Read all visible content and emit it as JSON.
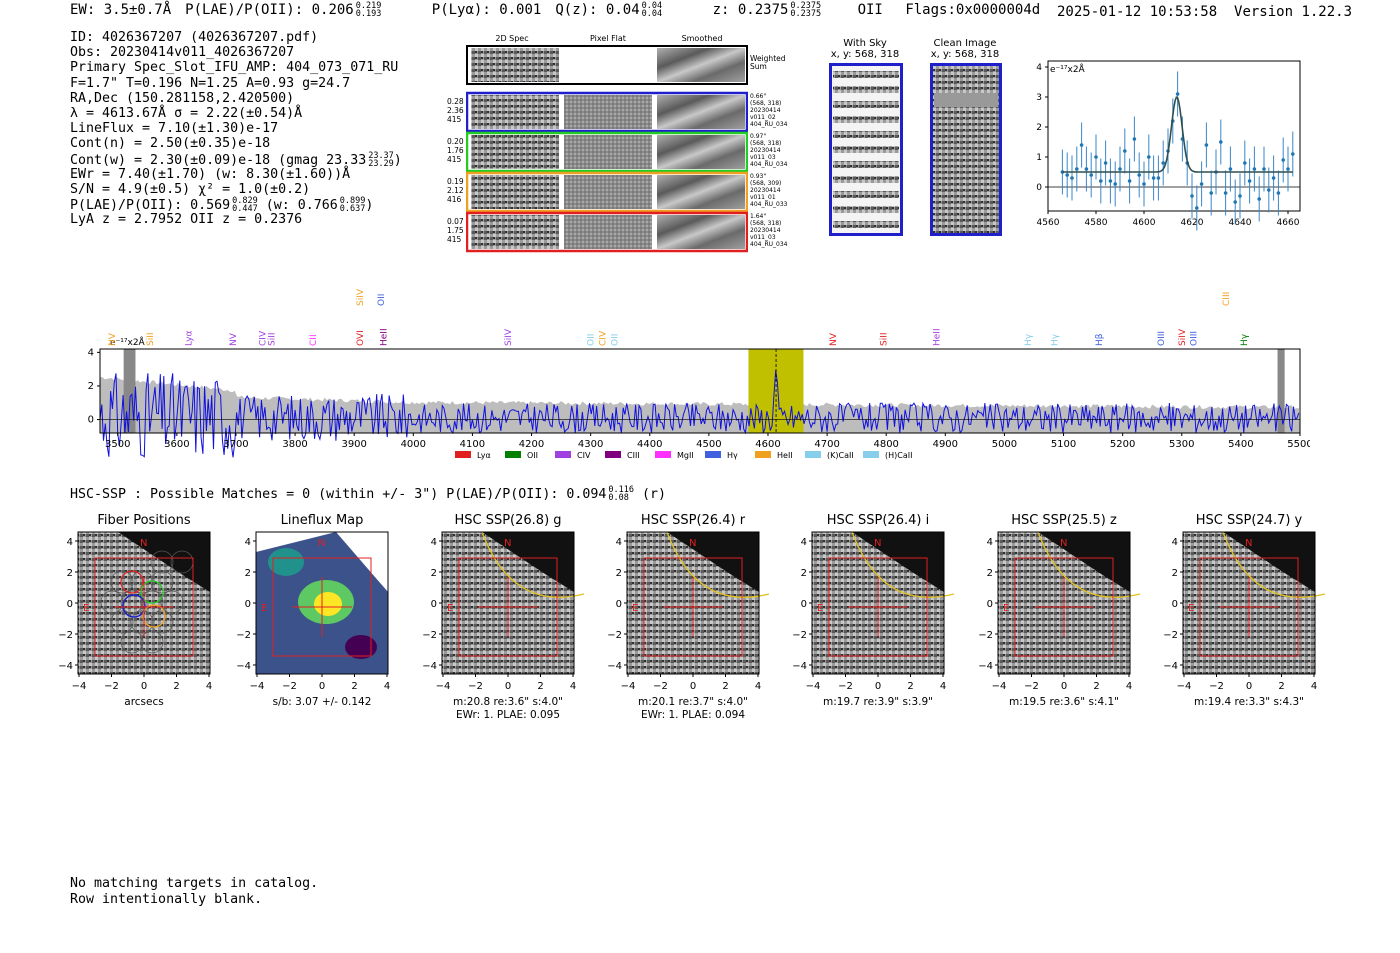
{
  "header": {
    "ew": "EW: 3.5±0.7Å",
    "plae_label": "P(LAE)/P(OII): 0.206",
    "plae_hi": "0.219",
    "plae_lo": "0.193",
    "plya": "P(Lyα): 0.001",
    "qz_label": "Q(z): 0.04",
    "qz_hi": "0.04",
    "qz_lo": "0.04",
    "z_label": "z: 0.2375",
    "z_hi": "0.2375",
    "z_lo": "0.2375",
    "z_line": "OII",
    "flags": "Flags:0x0000004d",
    "datetime": "2025-01-12 10:53:58",
    "version": "Version 1.22.3"
  },
  "info": {
    "id": "ID: 4026367207 (4026367207.pdf)",
    "obs": "Obs: 20230414v011_4026367207",
    "primary": "Primary Spec_Slot_IFU_AMP: 404_073_071_RU",
    "params": "F=1.7\"  T=0.196  N=1.25  A=0.93  g=24.7",
    "radec": "RA,Dec (150.281158,2.420500)",
    "lambda_sigma": "λ = 4613.67Å  σ = 2.22(±0.54)Å",
    "lineflux": "LineFlux = 7.10(±1.30)e-17",
    "contn": "Cont(n) = 2.50(±0.35)e-18",
    "contw": "Cont(w) = 2.30(±0.09)e-18 (gmag 23.33",
    "contw_hi": "23.37",
    "contw_lo": "23.29",
    "contw_end": ")",
    "ewr": "EWr = 7.40(±1.70) (w: 8.30(±1.60))Å",
    "sn": "S/N = 4.9(±0.5)  χ² = 1.0(±0.2)",
    "plae": "P(LAE)/P(OII): 0.569",
    "plae_hi": "0.829",
    "plae_lo": "0.447",
    "plae_w": "(w: 0.766",
    "plae_w_hi": "0.899",
    "plae_w_lo": "0.637",
    "plae_w_end": ")",
    "lya_z": "LyA z = 2.7952  OII z = 0.2376"
  },
  "cutouts": {
    "col_labels": [
      "2D Spec",
      "Pixel Flat",
      "Smoothed"
    ],
    "weighted_sum": "Weighted Sum",
    "rows": [
      {
        "left": [
          "0.28",
          "2.36",
          "415"
        ],
        "right": [
          "0.66\"",
          "(568, 318)",
          "20230414",
          "v011_02",
          "404_RU_034"
        ],
        "color": "#1f1fcc"
      },
      {
        "left": [
          "0.20",
          "1.76",
          "415"
        ],
        "right": [
          "0.97\"",
          "(568, 318)",
          "20230414",
          "v011_03",
          "404_RU_034"
        ],
        "color": "#22cc22"
      },
      {
        "left": [
          "0.19",
          "2.12",
          "416"
        ],
        "right": [
          "0.93\"",
          "(568, 309)",
          "20230414",
          "v011_01",
          "404_RU_033"
        ],
        "color": "#f0a020"
      },
      {
        "left": [
          "0.07",
          "1.75",
          "415"
        ],
        "right": [
          "1.64\"",
          "(568, 318)",
          "20230414",
          "v011_03",
          "404_RU_034"
        ],
        "color": "#e02020"
      }
    ]
  },
  "sky_panels": [
    {
      "title": "With Sky",
      "subtitle": "x, y: 568, 318"
    },
    {
      "title": "Clean Image",
      "subtitle": "x, y: 568, 318"
    }
  ],
  "zoom_spec": {
    "unit_label": "e⁻¹⁷x2Å",
    "yticks": [
      "0",
      "1",
      "2",
      "3",
      "4"
    ],
    "xticks": [
      "4560",
      "4580",
      "4600",
      "4620",
      "4640",
      "4660"
    ]
  },
  "full_spec": {
    "unit_label": "e⁻¹⁷x2Å",
    "yticks": [
      "0",
      "2",
      "4"
    ],
    "xticks": [
      "3500",
      "3600",
      "3700",
      "3800",
      "3900",
      "4000",
      "4100",
      "4200",
      "4300",
      "4400",
      "4500",
      "4600",
      "4700",
      "4800",
      "4900",
      "5000",
      "5100",
      "5200",
      "5300",
      "5400",
      "5500"
    ],
    "line_marks": [
      {
        "label": "NV",
        "wave": 3490,
        "color": "#f0a020",
        "row": 0
      },
      {
        "label": "SiII",
        "wave": 3555,
        "color": "#f0a020",
        "row": 0
      },
      {
        "label": "Lyα",
        "wave": 3620,
        "color": "#a040e0",
        "row": 0
      },
      {
        "label": "NV",
        "wave": 3695,
        "color": "#a040e0",
        "row": 0
      },
      {
        "label": "CIV",
        "wave": 3745,
        "color": "#a040e0",
        "row": 0
      },
      {
        "label": "SiII",
        "wave": 3760,
        "color": "#a040e0",
        "row": 0
      },
      {
        "label": "CII",
        "wave": 3830,
        "color": "#ff30ff",
        "row": 0
      },
      {
        "label": "SiIV",
        "wave": 3910,
        "color": "#f0a020",
        "row": 1
      },
      {
        "label": "OVI",
        "wave": 3910,
        "color": "#e02020",
        "row": 0
      },
      {
        "label": "OII",
        "wave": 3945,
        "color": "#4060e0",
        "row": 1
      },
      {
        "label": "HeII",
        "wave": 3950,
        "color": "#800080",
        "row": 0
      },
      {
        "label": "SiIV",
        "wave": 4160,
        "color": "#a040e0",
        "row": 0
      },
      {
        "label": "OII",
        "wave": 4300,
        "color": "#87ceeb",
        "row": 0
      },
      {
        "label": "CIV",
        "wave": 4320,
        "color": "#f0a020",
        "row": 0
      },
      {
        "label": "OII",
        "wave": 4340,
        "color": "#87ceeb",
        "row": 0
      },
      {
        "label": "NV",
        "wave": 4710,
        "color": "#e02020",
        "row": 0
      },
      {
        "label": "SiII",
        "wave": 4795,
        "color": "#e02020",
        "row": 0
      },
      {
        "label": "HeII",
        "wave": 4885,
        "color": "#a040e0",
        "row": 0
      },
      {
        "label": "Hγ",
        "wave": 5040,
        "color": "#87ceeb",
        "row": 0
      },
      {
        "label": "Hγ",
        "wave": 5085,
        "color": "#87ceeb",
        "row": 0
      },
      {
        "label": "Hβ",
        "wave": 5160,
        "color": "#4060e0",
        "row": 0
      },
      {
        "label": "OIII",
        "wave": 5265,
        "color": "#4060e0",
        "row": 0
      },
      {
        "label": "SiIV",
        "wave": 5300,
        "color": "#e02020",
        "row": 0
      },
      {
        "label": "OIII",
        "wave": 5320,
        "color": "#4060e0",
        "row": 0
      },
      {
        "label": "CIII",
        "wave": 5375,
        "color": "#f0a020",
        "row": 1
      },
      {
        "label": "Hγ",
        "wave": 5405,
        "color": "#008000",
        "row": 0
      }
    ],
    "legend": [
      {
        "label": "Lyα",
        "color": "#e02020"
      },
      {
        "label": "OII",
        "color": "#008000"
      },
      {
        "label": "CIV",
        "color": "#a040e0"
      },
      {
        "label": "CIII",
        "color": "#800080"
      },
      {
        "label": "MgII",
        "color": "#ff30ff"
      },
      {
        "label": "Hγ",
        "color": "#4060e0"
      },
      {
        "label": "HeII",
        "color": "#f0a020"
      },
      {
        "label": "(K)CaII",
        "color": "#87ceeb"
      },
      {
        "label": "(H)CaII",
        "color": "#87ceeb"
      }
    ]
  },
  "hsc": {
    "label": "HSC-SSP : Possible Matches = 0 (within +/- 3\")  P(LAE)/P(OII): 0.094",
    "hi": "0.116",
    "lo": "0.08",
    "band": "(r)"
  },
  "stamps": [
    {
      "title": "Fiber Positions",
      "xlabel": "arcsecs",
      "info1": "",
      "info2": ""
    },
    {
      "title": "Lineflux Map",
      "xlabel": "",
      "info1": "s/b: 3.07 +/- 0.142",
      "info2": ""
    },
    {
      "title": "HSC SSP(26.8) g",
      "xlabel": "",
      "info1": "m:20.8  re:3.6\"  s:4.0\"",
      "info2": "EWr: 1. PLAE: 0.095"
    },
    {
      "title": "HSC SSP(26.4) r",
      "xlabel": "",
      "info1": "m:20.1  re:3.7\"  s:4.0\"",
      "info2": "EWr: 1. PLAE: 0.094"
    },
    {
      "title": "HSC SSP(26.4) i",
      "xlabel": "",
      "info1": "m:19.7  re:3.9\"  s:3.9\"",
      "info2": ""
    },
    {
      "title": "HSC SSP(25.5) z",
      "xlabel": "",
      "info1": "m:19.5  re:3.6\"  s:4.1\"",
      "info2": ""
    },
    {
      "title": "HSC SSP(24.7) y",
      "xlabel": "",
      "info1": "m:19.4  re:3.3\"  s:4.3\"",
      "info2": ""
    }
  ],
  "stamp_axes": {
    "yticks": [
      "4",
      "2",
      "0",
      "−2",
      "−4"
    ],
    "xticks": [
      "−4",
      "−2",
      "0",
      "2",
      "4"
    ],
    "north": "N",
    "east": "E"
  },
  "footer": {
    "line1": "No matching targets in catalog.",
    "line2": "Row intentionally blank."
  },
  "chart_data": [
    {
      "type": "scatter",
      "name_hint": "zoom",
      "xlim": [
        4560,
        4665
      ],
      "ylim": [
        -0.8,
        4.2
      ],
      "ylabel": "e⁻¹⁷x2Å",
      "x": [
        4566,
        4568,
        4570,
        4572,
        4574,
        4576,
        4578,
        4580,
        4582,
        4584,
        4586,
        4588,
        4590,
        4592,
        4594,
        4596,
        4598,
        4600,
        4602,
        4604,
        4606,
        4608,
        4610,
        4612,
        4614,
        4616,
        4618,
        4620,
        4622,
        4624,
        4626,
        4628,
        4630,
        4632,
        4634,
        4636,
        4638,
        4640,
        4642,
        4644,
        4646,
        4648,
        4650,
        4652,
        4654,
        4656,
        4658,
        4660,
        4662
      ],
      "y": [
        0.5,
        0.4,
        0.3,
        0.6,
        1.4,
        0.6,
        0.4,
        1.0,
        0.2,
        0.8,
        0.2,
        0.1,
        0.6,
        1.2,
        0.2,
        1.6,
        0.4,
        0.1,
        1.0,
        0.3,
        0.3,
        0.8,
        1.2,
        2.2,
        3.1,
        1.6,
        0.8,
        -0.3,
        -0.7,
        0.1,
        1.4,
        -0.2,
        0.5,
        1.5,
        -0.2,
        0.6,
        -0.5,
        -0.3,
        0.8,
        0.2,
        0.6,
        -0.4,
        0.6,
        -0.1,
        0.3,
        -0.2,
        0.9,
        0.6,
        1.1
      ],
      "model_peak": 3.0,
      "model_center": 4613.67,
      "model_sigma": 2.22,
      "model_cont": 0.5
    },
    {
      "type": "line",
      "name_hint": "full",
      "xlim": [
        3470,
        5500
      ],
      "ylim": [
        -0.8,
        4.2
      ],
      "highlight_range": [
        4567,
        4660
      ],
      "line_wave": 4613.67
    }
  ]
}
